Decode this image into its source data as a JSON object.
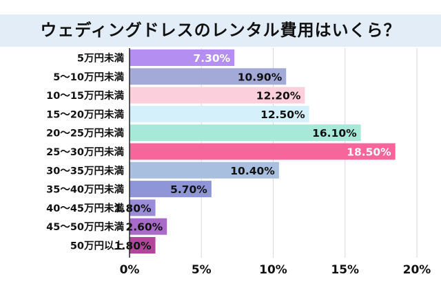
{
  "chart_data": {
    "type": "bar",
    "orientation": "horizontal",
    "title": "ウェディングドレスのレンタル費用はいくら？",
    "categories": [
      "5万円未満",
      "5～10万円未満",
      "10～15万円未満",
      "15～20万円未満",
      "20～25万円未満",
      "25～30万円未満",
      "30～35万円未満",
      "35～40万円未満",
      "40～45万円未満",
      "45～50万円未満",
      "50万円以上"
    ],
    "values": [
      7.3,
      10.9,
      12.2,
      12.5,
      16.1,
      18.5,
      10.4,
      5.7,
      1.8,
      2.6,
      1.8
    ],
    "value_labels": [
      "7.30%",
      "10.90%",
      "12.20%",
      "12.50%",
      "16.10%",
      "18.50%",
      "10.40%",
      "5.70%",
      "1.80%",
      "2.60%",
      "1.80%"
    ],
    "bar_colors": [
      "#b48ef0",
      "#a3aad8",
      "#fbd0dc",
      "#d4f1fb",
      "#a8e8d8",
      "#f7669a",
      "#a8bfdf",
      "#8e96d8",
      "#9a8cd8",
      "#a86cc8",
      "#b0479a"
    ],
    "label_colors": [
      "#ffffff",
      "#111111",
      "#111111",
      "#111111",
      "#111111",
      "#ffffff",
      "#111111",
      "#111111",
      "#111111",
      "#111111",
      "#111111"
    ],
    "xlim": [
      0,
      20
    ],
    "xticks": [
      0,
      5,
      10,
      15,
      20
    ],
    "xtick_labels": [
      "0%",
      "5%",
      "10%",
      "15%",
      "20%"
    ],
    "grid": "vertical",
    "gridline_color": "#d9d9d9",
    "title_band_color": "#e3edf7"
  }
}
